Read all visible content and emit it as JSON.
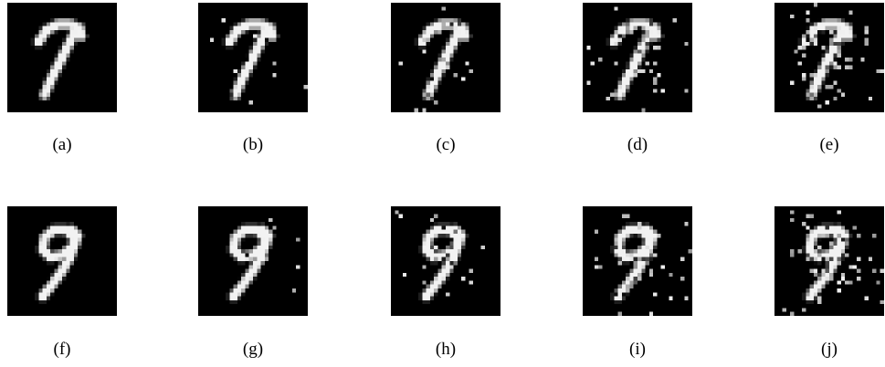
{
  "figure": {
    "rows": [
      {
        "digit": "7",
        "panels": [
          {
            "caption": "(a)",
            "noise_level": 0.0
          },
          {
            "caption": "(b)",
            "noise_level": 0.05
          },
          {
            "caption": "(c)",
            "noise_level": 0.1
          },
          {
            "caption": "(d)",
            "noise_level": 0.2
          },
          {
            "caption": "(e)",
            "noise_level": 0.3
          }
        ]
      },
      {
        "digit": "9",
        "panels": [
          {
            "caption": "(f)",
            "noise_level": 0.0
          },
          {
            "caption": "(g)",
            "noise_level": 0.05
          },
          {
            "caption": "(h)",
            "noise_level": 0.1
          },
          {
            "caption": "(i)",
            "noise_level": 0.2
          },
          {
            "caption": "(j)",
            "noise_level": 0.3
          }
        ]
      }
    ],
    "colors": {
      "background": "#000000",
      "stroke": "#f2f2f2"
    }
  }
}
